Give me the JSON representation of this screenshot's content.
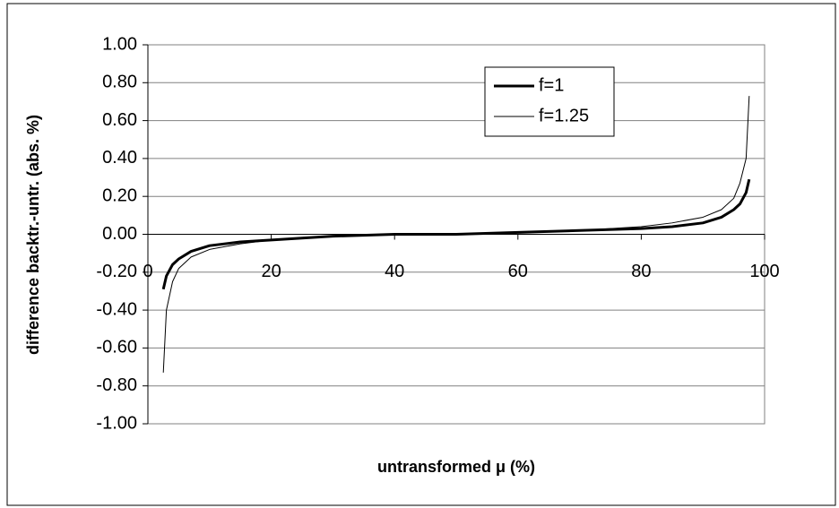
{
  "chart_data": {
    "type": "line",
    "xlabel": "untransformed μ (%)",
    "ylabel": "difference backtr.-untr. (abs. %)",
    "x": [
      2.5,
      3,
      4,
      5,
      7,
      10,
      15,
      20,
      30,
      40,
      50,
      60,
      70,
      80,
      85,
      90,
      93,
      95,
      96,
      97,
      97.5
    ],
    "series": [
      {
        "name": "f=1",
        "color": "#000000",
        "linewidth": 3,
        "values": [
          -0.29,
          -0.22,
          -0.16,
          -0.13,
          -0.09,
          -0.06,
          -0.04,
          -0.03,
          -0.01,
          0,
          0,
          0.01,
          0.02,
          0.03,
          0.04,
          0.06,
          0.09,
          0.13,
          0.16,
          0.22,
          0.29
        ]
      },
      {
        "name": "f=1.25",
        "color": "#000000",
        "linewidth": 1,
        "values": [
          -0.73,
          -0.4,
          -0.25,
          -0.18,
          -0.12,
          -0.08,
          -0.05,
          -0.03,
          -0.01,
          0,
          0,
          0.01,
          0.02,
          0.04,
          0.06,
          0.09,
          0.13,
          0.19,
          0.27,
          0.4,
          0.73
        ]
      }
    ],
    "xlim": [
      0,
      100
    ],
    "xticks": [
      0,
      20,
      40,
      60,
      80,
      100
    ],
    "ylim": [
      -1,
      1
    ],
    "yticks": [
      {
        "value": -1,
        "label": "-1.00"
      },
      {
        "value": -0.8,
        "label": "-0.80"
      },
      {
        "value": -0.6,
        "label": "-0.60"
      },
      {
        "value": -0.4,
        "label": "-0.40"
      },
      {
        "value": -0.2,
        "label": "-0.20"
      },
      {
        "value": 0,
        "label": "0.00"
      },
      {
        "value": 0.2,
        "label": "0.20"
      },
      {
        "value": 0.4,
        "label": "0.40"
      },
      {
        "value": 0.6,
        "label": "0.60"
      },
      {
        "value": 0.8,
        "label": "0.80"
      },
      {
        "value": 1,
        "label": "1.00"
      }
    ],
    "grid": true,
    "legend": "upper right"
  }
}
